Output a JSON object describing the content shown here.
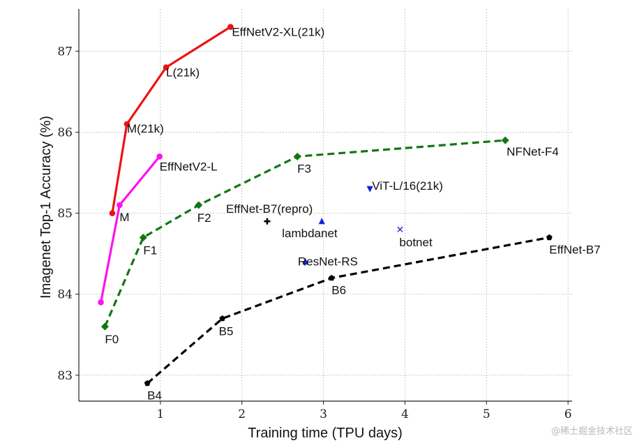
{
  "chart_data": {
    "type": "line",
    "xlabel": "Training time (TPU days)",
    "ylabel": "Imagenet Top-1 Accuracy (%)",
    "xlim": [
      0,
      6.05
    ],
    "ylim": [
      82.68,
      87.52
    ],
    "xticks": [
      1,
      2,
      3,
      4,
      5,
      6
    ],
    "yticks": [
      83,
      84,
      85,
      86,
      87
    ],
    "grid": true,
    "series": [
      {
        "name": "EffNetV2-XL(21k)",
        "color": "#ee1111",
        "style": "solid",
        "marker": "circle",
        "points": [
          {
            "x": 0.41,
            "y": 85.0,
            "label": ""
          },
          {
            "x": 0.59,
            "y": 86.1,
            "label": "M(21k)"
          },
          {
            "x": 1.07,
            "y": 86.8,
            "label": "L(21k)"
          },
          {
            "x": 1.86,
            "y": 87.3,
            "label": "EffNetV2-XL(21k)"
          }
        ]
      },
      {
        "name": "EffNetV2-L",
        "color": "#ff11ee",
        "style": "solid",
        "marker": "circle",
        "points": [
          {
            "x": 0.27,
            "y": 83.9,
            "label": ""
          },
          {
            "x": 0.5,
            "y": 85.1,
            "label": "M"
          },
          {
            "x": 0.99,
            "y": 85.7,
            "label": "EffNetV2-L"
          }
        ]
      },
      {
        "name": "NFNet-F4",
        "color": "#117711",
        "style": "dashed",
        "marker": "diamond",
        "points": [
          {
            "x": 0.32,
            "y": 83.6,
            "label": "F0"
          },
          {
            "x": 0.79,
            "y": 84.7,
            "label": "F1"
          },
          {
            "x": 1.47,
            "y": 85.1,
            "label": "F2"
          },
          {
            "x": 2.68,
            "y": 85.7,
            "label": "F3"
          },
          {
            "x": 5.23,
            "y": 85.9,
            "label": "NFNet-F4"
          }
        ]
      },
      {
        "name": "EffNet-B7",
        "color": "#000000",
        "style": "dashed",
        "marker": "pentagon",
        "points": [
          {
            "x": 0.84,
            "y": 82.9,
            "label": "B4"
          },
          {
            "x": 1.76,
            "y": 83.7,
            "label": "B5"
          },
          {
            "x": 3.1,
            "y": 84.2,
            "label": "B6"
          },
          {
            "x": 5.77,
            "y": 84.7,
            "label": "EffNet-B7"
          }
        ]
      }
    ],
    "points": [
      {
        "label": "EffNet-B7(repro)",
        "x": 2.31,
        "y": 84.9,
        "marker": "plus",
        "color": "#000000"
      },
      {
        "label": "lambdanet",
        "x": 2.98,
        "y": 84.9,
        "marker": "triangle-up",
        "color": "#1122dd"
      },
      {
        "label": "ViT-L/16(21k)",
        "x": 3.57,
        "y": 85.3,
        "marker": "triangle-down",
        "color": "#1122dd"
      },
      {
        "label": "botnet",
        "x": 3.94,
        "y": 84.8,
        "marker": "x",
        "color": "#1122dd"
      },
      {
        "label": "ResNet-RS",
        "x": 2.78,
        "y": 84.4,
        "marker": "triangle-up",
        "color": "#1122dd"
      }
    ]
  },
  "watermark": "@稀土掘金技术社区"
}
